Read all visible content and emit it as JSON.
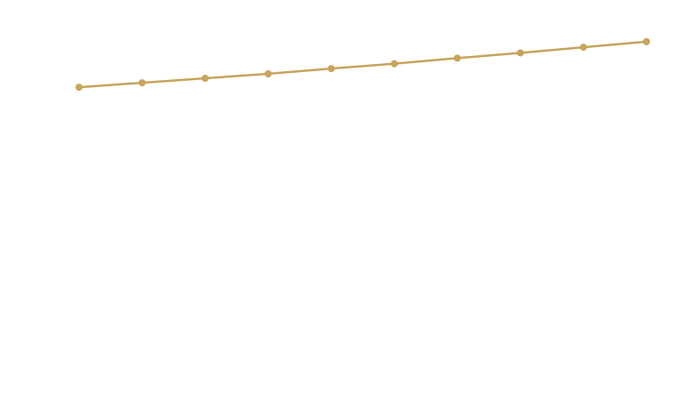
{
  "chart_data": {
    "type": "line",
    "categories": [
      null,
      null,
      null,
      null,
      null,
      null,
      null,
      null,
      null,
      null
    ],
    "series": [
      {
        "color": "#c8a45c",
        "values": [
          81.4,
          82.6,
          83.8,
          85.0,
          86.4,
          87.7,
          89.2,
          90.6,
          92.1,
          93.6
        ]
      }
    ],
    "ylim": [
      0,
      100
    ],
    "grid": false
  }
}
